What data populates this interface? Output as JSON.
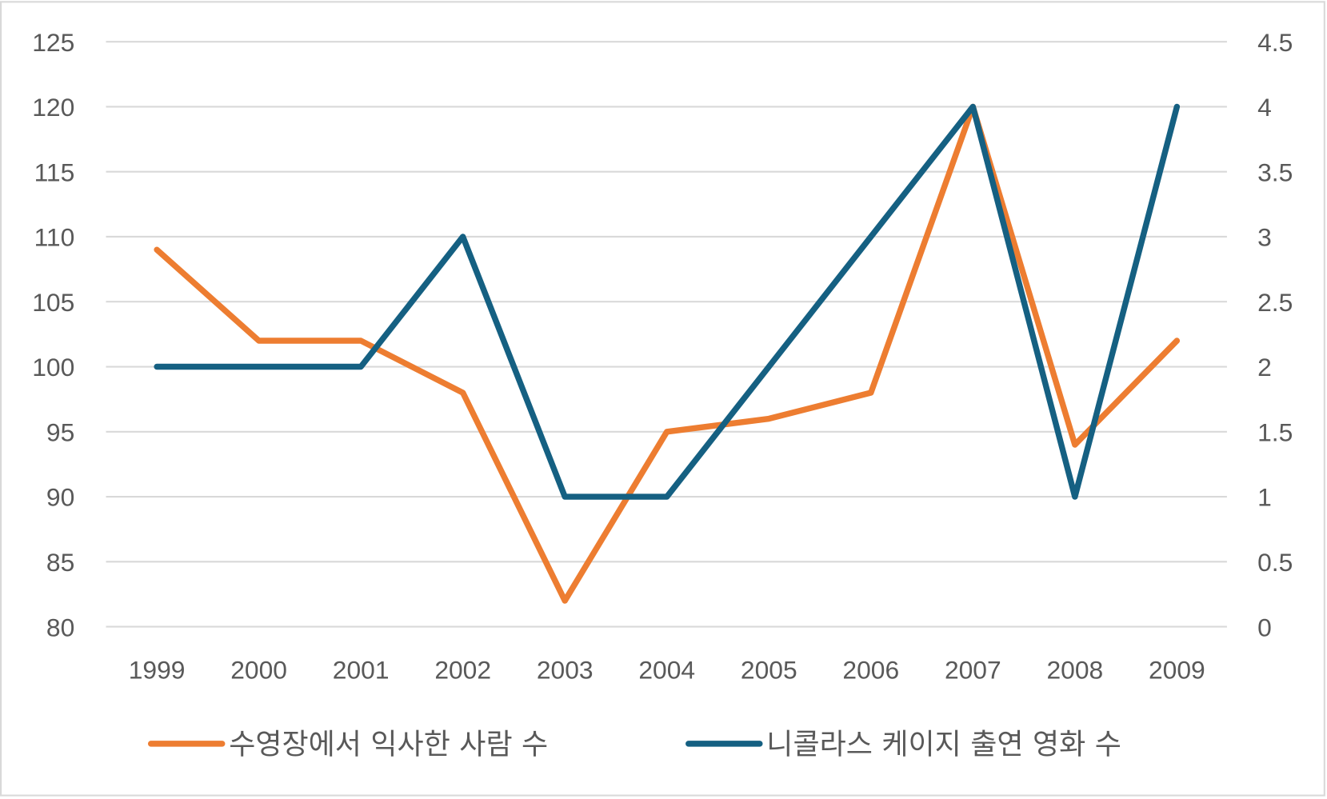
{
  "chart_data": {
    "type": "line",
    "title": "",
    "categories": [
      "1999",
      "2000",
      "2001",
      "2002",
      "2003",
      "2004",
      "2005",
      "2006",
      "2007",
      "2008",
      "2009"
    ],
    "series": [
      {
        "name": "수영장에서 익사한 사람 수",
        "axis": "left",
        "color": "#ED7D31",
        "values": [
          109,
          102,
          102,
          98,
          82,
          95,
          96,
          98,
          120,
          94,
          102
        ]
      },
      {
        "name": "니콜라스 케이지 출연 영화 수",
        "axis": "right",
        "color": "#156082",
        "values": [
          2,
          2,
          2,
          3,
          1,
          1,
          2,
          3,
          4,
          1,
          4
        ]
      }
    ],
    "ylim": [
      80,
      125
    ],
    "yticks": [
      "80",
      "85",
      "90",
      "95",
      "100",
      "105",
      "110",
      "115",
      "120",
      "125"
    ],
    "y2lim": [
      0,
      4.5
    ],
    "y2ticks": [
      "0",
      "0.5",
      "1",
      "1.5",
      "2",
      "2.5",
      "3",
      "3.5",
      "4",
      "4.5"
    ],
    "grid": true,
    "legend": "bottom",
    "xlabel": "",
    "ylabel": "",
    "y2label": ""
  }
}
